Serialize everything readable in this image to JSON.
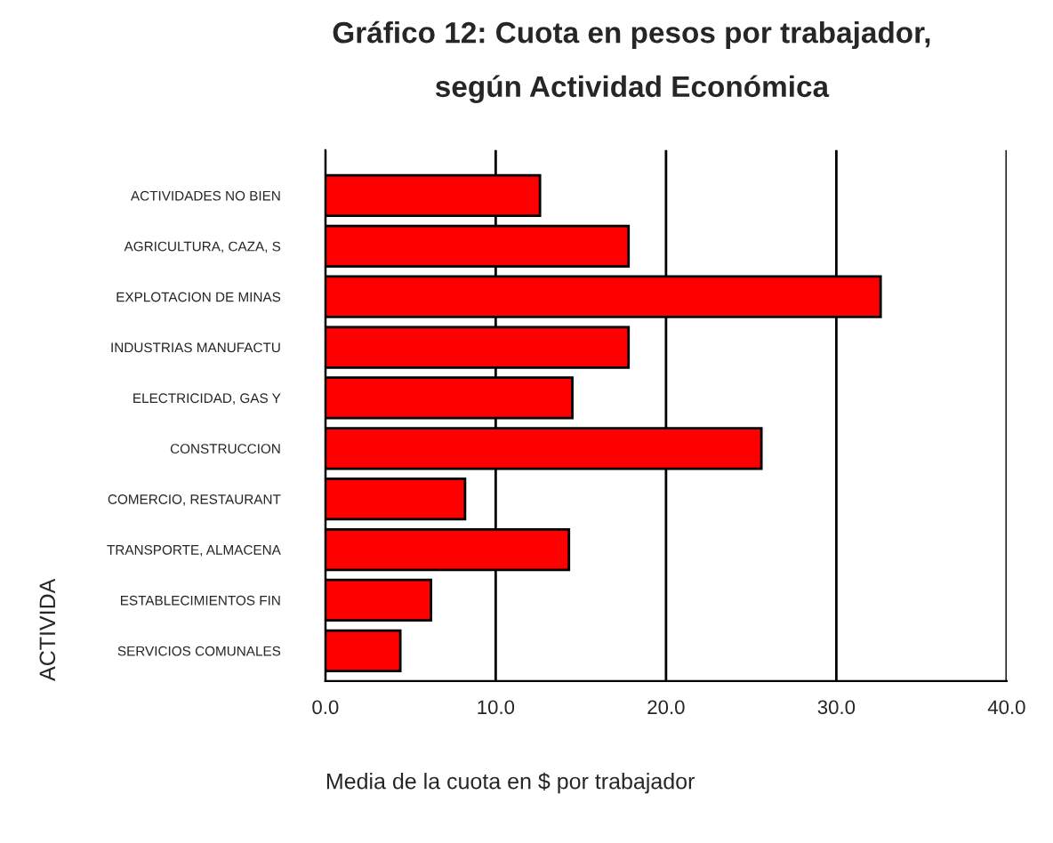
{
  "chart_data": {
    "type": "bar",
    "orientation": "horizontal",
    "title": "Gráfico 12: Cuota en pesos por trabajador,\nsegún Actividad Económica",
    "xlabel": "Media de la cuota en $ por trabajador",
    "ylabel": "ACTIVIDA",
    "categories": [
      "ACTIVIDADES NO BIEN",
      "AGRICULTURA, CAZA, S",
      "EXPLOTACION DE MINAS",
      "INDUSTRIAS MANUFACTU",
      "ELECTRICIDAD, GAS Y",
      "CONSTRUCCION",
      "COMERCIO, RESTAURANT",
      "TRANSPORTE, ALMACENA",
      "ESTABLECIMIENTOS FIN",
      "SERVICIOS COMUNALES"
    ],
    "values": [
      12.6,
      17.8,
      32.6,
      17.8,
      14.5,
      25.6,
      8.2,
      14.3,
      6.2,
      4.4
    ],
    "color": "#ff0000",
    "xlim": [
      0,
      40
    ],
    "xticks": [
      {
        "value": 0,
        "label": "0.0"
      },
      {
        "value": 10,
        "label": "10.0"
      },
      {
        "value": 20,
        "label": "20.0"
      },
      {
        "value": 30,
        "label": "30.0"
      },
      {
        "value": 40,
        "label": "40.0"
      }
    ],
    "grid": "x"
  }
}
